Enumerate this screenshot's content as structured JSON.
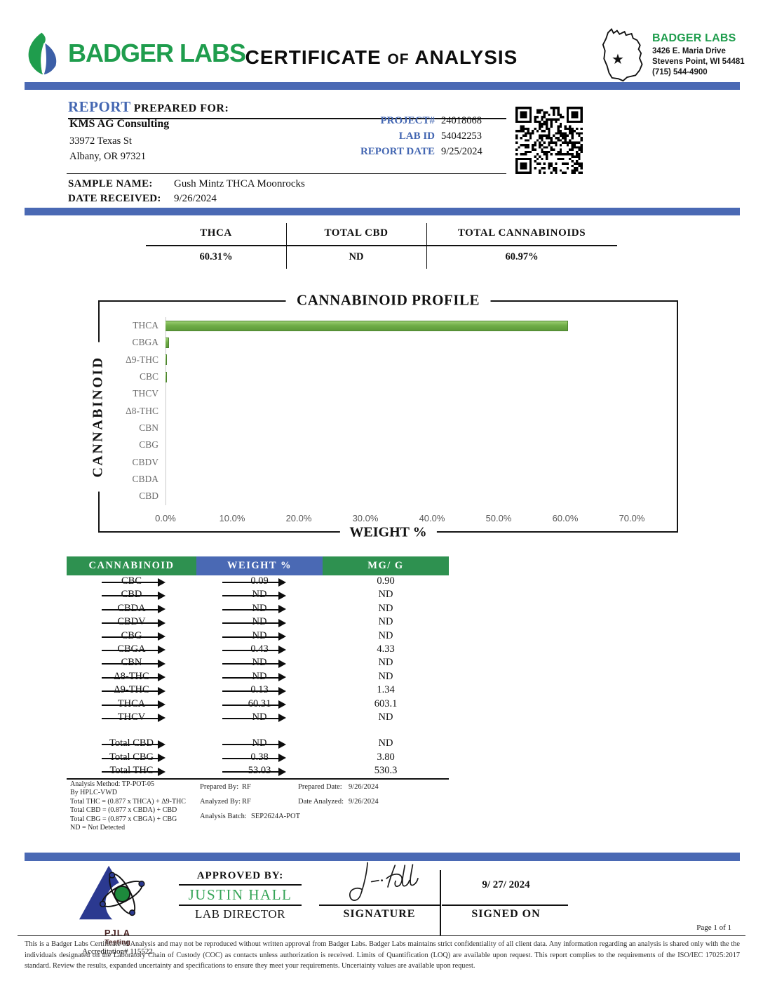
{
  "header": {
    "logo_text": "BADGER LABS",
    "title_main_1": "CERTIFICATE",
    "title_of": "OF",
    "title_main_2": "ANALYSIS",
    "lab": {
      "name": "BADGER LABS",
      "address_line1": "3426 E. Maria Drive",
      "address_line2": "Stevens Point, WI 54481",
      "phone": "(715) 544-4900"
    }
  },
  "report": {
    "heading_report": "REPORT",
    "heading_prepared_for": "PREPARED FOR:",
    "client_name": "KMS AG Consulting",
    "client_address_line1": "33972 Texas St",
    "client_address_line2": "Albany, OR 97321",
    "meta": [
      {
        "label": "PROJECT#",
        "value": "24018068"
      },
      {
        "label": "LAB ID",
        "value": "54042253"
      },
      {
        "label": "REPORT DATE",
        "value": "9/25/2024"
      }
    ],
    "sample_name_label": "SAMPLE NAME:",
    "sample_name": "Gush Mintz THCA Moonrocks",
    "date_received_label": "DATE RECEIVED:",
    "date_received": "9/26/2024"
  },
  "summary": {
    "columns": [
      {
        "label": "THCA",
        "value": "60.31%"
      },
      {
        "label": "TOTAL CBD",
        "value": "ND"
      },
      {
        "label": "TOTAL CANNABINOIDS",
        "value": "60.97%"
      }
    ]
  },
  "chart_data": {
    "type": "bar",
    "orientation": "horizontal",
    "title": "CANNABINOID PROFILE",
    "categories": [
      "THCA",
      "CBGA",
      "Δ9-THC",
      "CBC",
      "THCV",
      "Δ8-THC",
      "CBN",
      "CBG",
      "CBDV",
      "CBDA",
      "CBD"
    ],
    "values": [
      60.31,
      0.43,
      0.13,
      0.09,
      0,
      0,
      0,
      0,
      0,
      0,
      0
    ],
    "xlabel": "WEIGHT %",
    "ylabel": "CANNABINOID",
    "xlim": [
      0,
      75
    ],
    "x_ticks": [
      "0.0%",
      "10.0%",
      "20.0%",
      "30.0%",
      "40.0%",
      "50.0%",
      "60.0%",
      "70.0%"
    ],
    "x_tick_values": [
      0,
      10,
      20,
      30,
      40,
      50,
      60,
      70
    ],
    "bar_color": "#70ad47",
    "grid": false,
    "legend": false
  },
  "results_table": {
    "headers": [
      "CANNABINOID",
      "WEIGHT %",
      "MG/ G"
    ],
    "rows": [
      {
        "name": "CBC",
        "weight": "0.09",
        "mg": "0.90"
      },
      {
        "name": "CBD",
        "weight": "ND",
        "mg": "ND"
      },
      {
        "name": "CBDA",
        "weight": "ND",
        "mg": "ND"
      },
      {
        "name": "CBDV",
        "weight": "ND",
        "mg": "ND"
      },
      {
        "name": "CBG",
        "weight": "ND",
        "mg": "ND"
      },
      {
        "name": "CBGA",
        "weight": "0.43",
        "mg": "4.33"
      },
      {
        "name": "CBN",
        "weight": "ND",
        "mg": "ND"
      },
      {
        "name": "Δ8-THC",
        "weight": "ND",
        "mg": "ND"
      },
      {
        "name": "Δ9-THC",
        "weight": "0.13",
        "mg": "1.34"
      },
      {
        "name": "THCA",
        "weight": "60.31",
        "mg": "603.1"
      },
      {
        "name": "THCV",
        "weight": "ND",
        "mg": "ND"
      }
    ],
    "total_rows": [
      {
        "name": "Total CBD",
        "weight": "ND",
        "mg": "ND"
      },
      {
        "name": "Total CBG",
        "weight": "0.38",
        "mg": "3.80"
      },
      {
        "name": "Total THC",
        "weight": "53.03",
        "mg": "530.3"
      }
    ]
  },
  "footnotes": {
    "left_lines": [
      "Analysis Method: TP-POT-05",
      "By HPLC-VWD",
      "Total THC = (0.877 x  THCA) + Δ9-THC",
      "Total CBD = (0.877 x  CBDA) + CBD",
      "Total CBG = (0.877 x  CBGA) + CBG",
      "ND = Not Detected"
    ],
    "prepared_by_label": "Prepared By:",
    "prepared_by": "RF",
    "prepared_date_label": "Prepared Date:",
    "prepared_date": "9/26/2024",
    "analyzed_by_label": "Analyzed By:",
    "analyzed_by": "RF",
    "date_analyzed_label": "Date Analyzed:",
    "date_analyzed": "9/26/2024",
    "analysis_batch_label": "Analysis Batch:",
    "analysis_batch": "SEP2624A-POT"
  },
  "approval": {
    "accreditation_org": "PJLA",
    "accreditation_sub": "Testing",
    "accreditation_number": "Accreditation# 115522",
    "approved_by_label": "APPROVED BY:",
    "approver_name": "JUSTIN HALL",
    "approver_title": "LAB DIRECTOR",
    "signature_label": "SIGNATURE",
    "signed_on_date": "9/ 27/ 2024",
    "signed_on_label": "SIGNED ON"
  },
  "footer": {
    "page": "Page 1 of 1",
    "disclaimer": "This is a Badger Labs Certificate of Analysis and may not be reproduced without written approval from Badger Labs. Badger Labs maintains strict confidentiality of all client data. Any information regarding an analysis is shared only with the the individuals designated on the Laboratory Chain of Custody (COC) as contacts unless authorization is received. Limits of Quantification (LOQ) are available upon request. This report complies to the requirements of the ISO/IEC 17025:2017 standard. Review the results, expanded uncertainty and specifications to ensure they meet your requirements. Uncertainty values are available upon request."
  },
  "colors": {
    "accent_blue": "#4a69b4",
    "accent_green": "#1f9d4d",
    "table_green": "#2e9150",
    "table_blue": "#4a69b4",
    "bar_green": "#70ad47",
    "approver_green": "#35a457"
  }
}
